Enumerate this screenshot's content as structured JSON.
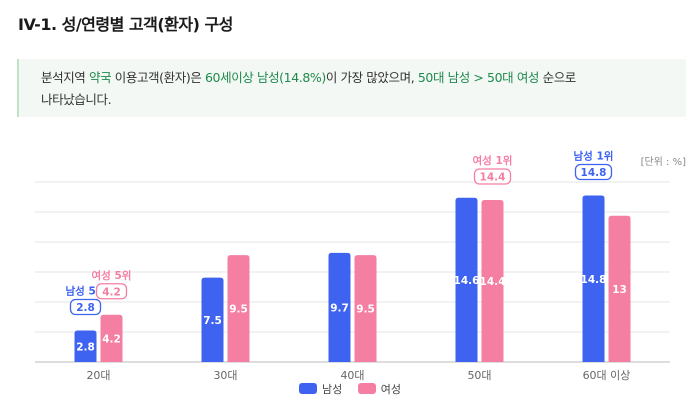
{
  "section_title": "IV-1. 성/연령별 고객(환자) 구성",
  "summary": {
    "p1": "분석지역 ",
    "h1": "약국",
    "p2": " 이용고객(환자)은 ",
    "h2": "60세이상 남성(14.8%)",
    "p3": "이 가장 많았으며, ",
    "h3": "50대 남성 > 50대 여성",
    "p4": " 순으로",
    "line2": "나타났습니다."
  },
  "colors": {
    "male": "#3d63f0",
    "female": "#f57ea3",
    "grid": "#e6e6e6",
    "axis": "#bbbbbb"
  },
  "chart_data": {
    "type": "bar",
    "unit_label": "[단위 : %]",
    "categories": [
      "20대",
      "30대",
      "40대",
      "50대",
      "60대 이상"
    ],
    "series": [
      {
        "name": "남성",
        "values": [
          2.8,
          7.5,
          9.7,
          14.6,
          14.8
        ]
      },
      {
        "name": "여성",
        "values": [
          4.2,
          9.5,
          9.5,
          14.4,
          13
        ]
      }
    ],
    "ylim": [
      0,
      16
    ],
    "value_labels": {
      "남성": [
        "2.8",
        "7.5",
        "9.7",
        "14.6",
        "14.8"
      ],
      "여성": [
        "4.2",
        "9.5",
        "9.5",
        "14.4",
        "13"
      ]
    },
    "callouts": [
      {
        "series": 0,
        "category": 0,
        "rank": "남성 5위",
        "value": "2.8"
      },
      {
        "series": 1,
        "category": 0,
        "rank": "여성 5위",
        "value": "4.2"
      },
      {
        "series": 1,
        "category": 3,
        "rank": "여성 1위",
        "value": "14.4"
      },
      {
        "series": 0,
        "category": 4,
        "rank": "남성 1위",
        "value": "14.8"
      }
    ],
    "legend": [
      "남성",
      "여성"
    ],
    "legend_position": "bottom"
  }
}
